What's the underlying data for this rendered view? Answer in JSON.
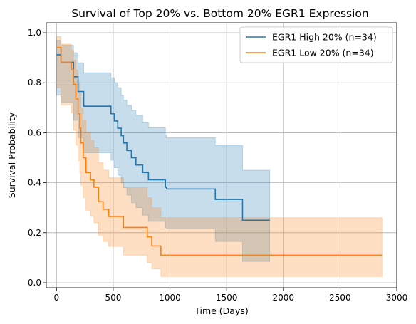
{
  "chart_data": {
    "type": "line",
    "title": "Survival of Top 20% vs. Bottom 20% EGR1 Expression",
    "xlabel": "Time (Days)",
    "ylabel": "Survival Probability",
    "xlim": [
      -90,
      3000
    ],
    "ylim": [
      -0.02,
      1.04
    ],
    "xticks": [
      0,
      500,
      1000,
      1500,
      2000,
      2500,
      3000
    ],
    "xtick_labels": [
      "0",
      "500",
      "1000",
      "1500",
      "2000",
      "2500",
      "3000"
    ],
    "yticks": [
      0.0,
      0.2,
      0.4,
      0.6,
      0.8,
      1.0
    ],
    "ytick_labels": [
      "0.0",
      "0.2",
      "0.4",
      "0.6",
      "0.8",
      "1.0"
    ],
    "grid": true,
    "legend_position": "top-right",
    "series": [
      {
        "name": "EGR1 High 20% (n=34)",
        "color": "#1f77b4",
        "band_color": "#1f77b4",
        "steps": [
          [
            0,
            0.912
          ],
          [
            40,
            0.882
          ],
          [
            150,
            0.824
          ],
          [
            190,
            0.765
          ],
          [
            240,
            0.706
          ],
          [
            480,
            0.676
          ],
          [
            510,
            0.647
          ],
          [
            540,
            0.618
          ],
          [
            570,
            0.588
          ],
          [
            590,
            0.559
          ],
          [
            620,
            0.529
          ],
          [
            660,
            0.5
          ],
          [
            700,
            0.471
          ],
          [
            760,
            0.441
          ],
          [
            810,
            0.412
          ],
          [
            960,
            0.382
          ],
          [
            970,
            0.375
          ],
          [
            1400,
            0.333
          ],
          [
            1640,
            0.25
          ],
          [
            1880,
            0.25
          ]
        ],
        "upper": [
          [
            0,
            0.97
          ],
          [
            40,
            0.95
          ],
          [
            150,
            0.92
          ],
          [
            190,
            0.88
          ],
          [
            240,
            0.84
          ],
          [
            480,
            0.82
          ],
          [
            510,
            0.8
          ],
          [
            540,
            0.78
          ],
          [
            570,
            0.75
          ],
          [
            590,
            0.73
          ],
          [
            620,
            0.71
          ],
          [
            660,
            0.69
          ],
          [
            700,
            0.67
          ],
          [
            760,
            0.64
          ],
          [
            810,
            0.62
          ],
          [
            960,
            0.59
          ],
          [
            970,
            0.58
          ],
          [
            1400,
            0.55
          ],
          [
            1640,
            0.45
          ],
          [
            1880,
            0.45
          ]
        ],
        "lower": [
          [
            0,
            0.75
          ],
          [
            40,
            0.72
          ],
          [
            150,
            0.65
          ],
          [
            190,
            0.58
          ],
          [
            240,
            0.52
          ],
          [
            480,
            0.49
          ],
          [
            510,
            0.46
          ],
          [
            540,
            0.43
          ],
          [
            570,
            0.4
          ],
          [
            590,
            0.38
          ],
          [
            620,
            0.35
          ],
          [
            660,
            0.32
          ],
          [
            700,
            0.3
          ],
          [
            760,
            0.27
          ],
          [
            810,
            0.245
          ],
          [
            960,
            0.22
          ],
          [
            970,
            0.215
          ],
          [
            1400,
            0.165
          ],
          [
            1640,
            0.085
          ],
          [
            1880,
            0.085
          ]
        ]
      },
      {
        "name": "EGR1 Low 20% (n=34)",
        "color": "#ff7f0e",
        "band_color": "#ff7f0e",
        "steps": [
          [
            0,
            0.941
          ],
          [
            40,
            0.882
          ],
          [
            130,
            0.853
          ],
          [
            150,
            0.794
          ],
          [
            170,
            0.735
          ],
          [
            190,
            0.676
          ],
          [
            205,
            0.618
          ],
          [
            215,
            0.559
          ],
          [
            235,
            0.5
          ],
          [
            260,
            0.441
          ],
          [
            300,
            0.412
          ],
          [
            330,
            0.382
          ],
          [
            370,
            0.324
          ],
          [
            410,
            0.294
          ],
          [
            460,
            0.265
          ],
          [
            590,
            0.221
          ],
          [
            800,
            0.184
          ],
          [
            840,
            0.147
          ],
          [
            920,
            0.11
          ],
          [
            2870,
            0.11
          ]
        ],
        "upper": [
          [
            0,
            0.985
          ],
          [
            40,
            0.955
          ],
          [
            130,
            0.93
          ],
          [
            150,
            0.89
          ],
          [
            170,
            0.85
          ],
          [
            190,
            0.8
          ],
          [
            205,
            0.755
          ],
          [
            215,
            0.7
          ],
          [
            235,
            0.65
          ],
          [
            260,
            0.6
          ],
          [
            300,
            0.57
          ],
          [
            330,
            0.54
          ],
          [
            370,
            0.48
          ],
          [
            410,
            0.45
          ],
          [
            460,
            0.42
          ],
          [
            590,
            0.38
          ],
          [
            800,
            0.34
          ],
          [
            840,
            0.3
          ],
          [
            920,
            0.26
          ],
          [
            2870,
            0.26
          ]
        ],
        "lower": [
          [
            0,
            0.78
          ],
          [
            40,
            0.71
          ],
          [
            130,
            0.68
          ],
          [
            150,
            0.61
          ],
          [
            170,
            0.55
          ],
          [
            190,
            0.49
          ],
          [
            205,
            0.44
          ],
          [
            215,
            0.39
          ],
          [
            235,
            0.34
          ],
          [
            260,
            0.29
          ],
          [
            300,
            0.265
          ],
          [
            330,
            0.24
          ],
          [
            370,
            0.19
          ],
          [
            410,
            0.165
          ],
          [
            460,
            0.145
          ],
          [
            590,
            0.11
          ],
          [
            800,
            0.08
          ],
          [
            840,
            0.055
          ],
          [
            920,
            0.025
          ],
          [
            2870,
            0.025
          ]
        ]
      }
    ]
  }
}
